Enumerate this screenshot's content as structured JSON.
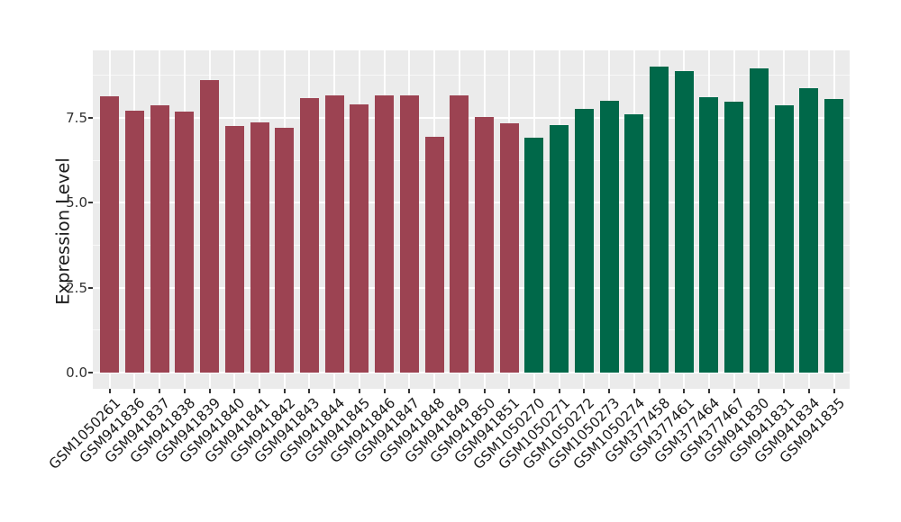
{
  "figure": {
    "background_color": "#FFFFFF",
    "panel_background_color": "#EBEBEB",
    "gridline_color": "#FFFFFF"
  },
  "chart_data": {
    "type": "bar",
    "title": "",
    "xlabel": "",
    "ylabel": "Expression Level",
    "ylim": [
      0,
      9.5
    ],
    "ytick_labels": [
      "0.0",
      "2.5",
      "5.0",
      "7.5"
    ],
    "ytick_values": [
      0.0,
      2.5,
      5.0,
      7.5
    ],
    "yminor_values": [
      1.25,
      3.75,
      6.25,
      8.75
    ],
    "grid": "on",
    "legend": "none",
    "colors": {
      "groupA": "#9C4352",
      "groupB": "#006849"
    },
    "categories": [
      "GSM1050261",
      "GSM941836",
      "GSM941837",
      "GSM941838",
      "GSM941839",
      "GSM941840",
      "GSM941841",
      "GSM941842",
      "GSM941843",
      "GSM941844",
      "GSM941845",
      "GSM941846",
      "GSM941847",
      "GSM941848",
      "GSM941849",
      "GSM941850",
      "GSM941851",
      "GSM1050270",
      "GSM1050271",
      "GSM1050272",
      "GSM1050273",
      "GSM1050274",
      "GSM377458",
      "GSM377461",
      "GSM377464",
      "GSM377467",
      "GSM941830",
      "GSM941831",
      "GSM941834",
      "GSM941835"
    ],
    "values": [
      8.13,
      7.72,
      7.87,
      7.7,
      8.61,
      7.26,
      7.37,
      7.22,
      8.08,
      8.16,
      7.91,
      8.16,
      8.16,
      6.94,
      8.16,
      7.52,
      7.34,
      6.91,
      7.29,
      7.76,
      8.01,
      7.62,
      9.01,
      8.89,
      8.1,
      7.98,
      8.97,
      7.88,
      8.37,
      8.06
    ],
    "groups": [
      "groupA",
      "groupA",
      "groupA",
      "groupA",
      "groupA",
      "groupA",
      "groupA",
      "groupA",
      "groupA",
      "groupA",
      "groupA",
      "groupA",
      "groupA",
      "groupA",
      "groupA",
      "groupA",
      "groupA",
      "groupB",
      "groupB",
      "groupB",
      "groupB",
      "groupB",
      "groupB",
      "groupB",
      "groupB",
      "groupB",
      "groupB",
      "groupB",
      "groupB",
      "groupB"
    ]
  }
}
